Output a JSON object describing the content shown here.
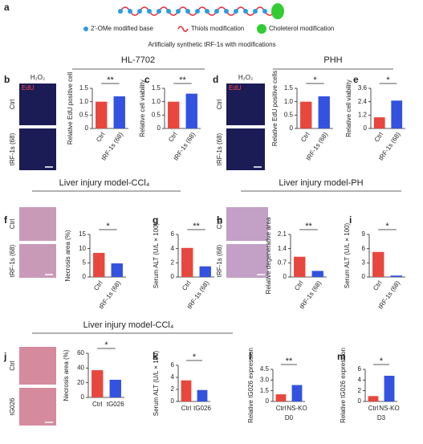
{
  "panel_letters": [
    "a",
    "b",
    "c",
    "d",
    "e",
    "f",
    "g",
    "h",
    "i",
    "j",
    "k",
    "l",
    "m"
  ],
  "diagram": {
    "legend": [
      "2'-OMe modified base",
      "Thiols modification",
      "Choleterol modification"
    ],
    "caption": "Artificially synthetic tRF-1s with modifications"
  },
  "sections": [
    "HL-7702",
    "PHH",
    "Liver injury model-CCl₄",
    "Liver injury model-PH",
    "Liver injury model-CCl₄"
  ],
  "images": [
    {
      "title": "H₂O₂",
      "stain": "EdU",
      "rows": [
        "Ctrl",
        "tRF-1s (68)"
      ]
    },
    {
      "title": "H₂O₂",
      "stain": "EdU",
      "rows": [
        "Ctrl",
        "tRF-1s (68)"
      ]
    },
    {
      "rows": [
        "Ctrl",
        "tRF-1s (68)"
      ]
    },
    {
      "rows": [
        "Ctrl",
        "tRF-1s (68)"
      ]
    },
    {
      "rows": [
        "Ctrl",
        "tG026"
      ]
    }
  ],
  "bar_colors": [
    "#e8473d",
    "#3452e0"
  ],
  "chart_data": [
    {
      "type": "bar",
      "ylabel": "Relative EdU positive cell",
      "categories": [
        "Ctrl",
        "tRF-1s (68)"
      ],
      "values": [
        1.0,
        1.2
      ],
      "ylim": [
        0,
        1.5
      ],
      "yticks": [
        0,
        0.5,
        {
          "value": 1,
          "label": "1.0"
        },
        1.5
      ],
      "significance": "**"
    },
    {
      "type": "bar",
      "ylabel": "Relative cell viability",
      "categories": [
        "Ctrl",
        "tRF-1s (68)"
      ],
      "values": [
        1.0,
        1.3
      ],
      "ylim": [
        0,
        1.5
      ],
      "yticks": [
        0,
        0.5,
        {
          "value": 1,
          "label": "1.0"
        },
        1.5
      ],
      "significance": "**"
    },
    {
      "type": "bar",
      "ylabel": "Relative EdU positive cells",
      "categories": [
        "Ctrl",
        "tRF-1s (68)"
      ],
      "values": [
        1.0,
        1.2
      ],
      "ylim": [
        0,
        1.5
      ],
      "yticks": [
        0,
        0.5,
        {
          "value": 1,
          "label": "1.0"
        },
        1.5
      ],
      "significance": "*"
    },
    {
      "type": "bar",
      "ylabel": "Relative cell viability",
      "categories": [
        "Ctrl",
        "tRF-1s (68)"
      ],
      "values": [
        1.0,
        2.5
      ],
      "ylim": [
        0,
        3.6
      ],
      "yticks": [
        0,
        1.2,
        2.4,
        3.6
      ],
      "significance": "*"
    },
    {
      "type": "bar",
      "ylabel": "Necrosis area (%)",
      "categories": [
        "Ctrl",
        "tRF-1s (68)"
      ],
      "values": [
        8.5,
        4.8
      ],
      "ylim": [
        0,
        15
      ],
      "yticks": [
        0,
        5,
        10,
        15
      ],
      "significance": "*"
    },
    {
      "type": "bar",
      "ylabel": "Serum ALT (U/L × 100)",
      "categories": [
        "Ctrl",
        "tRF-1s (68)"
      ],
      "values": [
        4.1,
        1.5
      ],
      "ylim": [
        0,
        6
      ],
      "yticks": [
        0,
        2,
        4,
        6
      ],
      "significance": "**"
    },
    {
      "type": "bar",
      "ylabel": "Relative degenerative area",
      "categories": [
        "Ctrl",
        "tRF-1s (68)"
      ],
      "values": [
        1.0,
        0.3
      ],
      "ylim": [
        0,
        2.1
      ],
      "yticks": [
        0,
        0.7,
        1.4,
        2.1
      ],
      "significance": "**"
    },
    {
      "type": "bar",
      "ylabel": "Serum ALT (U/L × 100)",
      "categories": [
        "Ctrl",
        "tRF-1s (68)"
      ],
      "values": [
        5.3,
        0.3
      ],
      "ylim": [
        0,
        9
      ],
      "yticks": [
        0,
        3,
        6,
        9
      ],
      "significance": "*"
    },
    {
      "type": "bar",
      "ylabel": "Necrosis area (%)",
      "categories": [
        "Ctrl",
        "tG026"
      ],
      "values": [
        37,
        24
      ],
      "ylim": [
        0,
        60
      ],
      "yticks": [
        0,
        20,
        40,
        60
      ],
      "significance": "*"
    },
    {
      "type": "bar",
      "ylabel": "Serum ALT (U/L × 100)",
      "categories": [
        "Ctrl",
        "tG026"
      ],
      "values": [
        3.5,
        1.9
      ],
      "ylim": [
        0,
        6
      ],
      "yticks": [
        0,
        2,
        4,
        6
      ],
      "significance": "*"
    },
    {
      "type": "bar",
      "ylabel": "Relative tG026 expression",
      "categories": [
        "Ctrl",
        "NS-KO"
      ],
      "values": [
        1.0,
        2.3
      ],
      "ylim": [
        0,
        4.5
      ],
      "yticks": [
        0,
        1.5,
        {
          "value": 3,
          "label": "3.0"
        },
        4.5
      ],
      "significance": "**",
      "xlabel": "D0"
    },
    {
      "type": "bar",
      "ylabel": "Relative tG026 expression",
      "categories": [
        "Ctrl",
        "NS-KO"
      ],
      "values": [
        1.0,
        4.8
      ],
      "ylim": [
        0,
        6
      ],
      "yticks": [
        0,
        2,
        4,
        6
      ],
      "significance": "*",
      "xlabel": "D3"
    }
  ]
}
